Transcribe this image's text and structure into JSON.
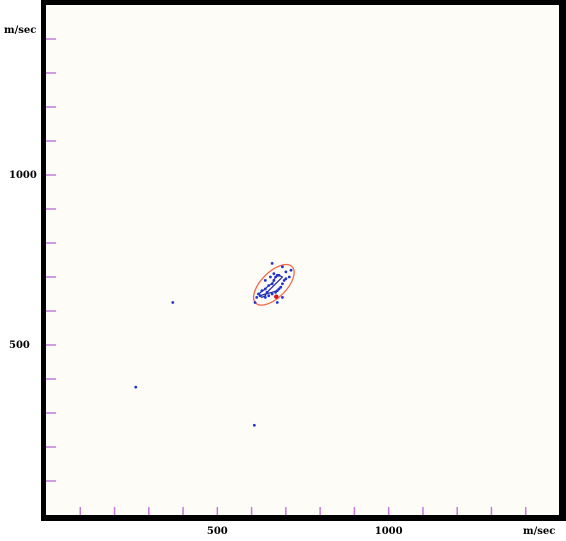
{
  "chart_data": {
    "type": "scatter",
    "xlabel": "m/sec",
    "ylabel": "m/sec",
    "xlim": [
      0,
      1500
    ],
    "ylim": [
      0,
      1500
    ],
    "x_ticks_labeled": [
      500,
      1000
    ],
    "y_ticks_labeled": [
      500,
      1000
    ],
    "minor_tick_step": 100,
    "grid": false,
    "colors": {
      "background": "#fdfcf7",
      "frame": "#000000",
      "tick": "#c47ad8",
      "points": "#2233cc",
      "track": "#1a2aa0",
      "ellipse": "#f06a4a",
      "highlight": "#e0101a"
    },
    "ellipse": {
      "cx": 665,
      "cy": 677,
      "rx": 75,
      "ry": 37,
      "angle_deg": 45
    },
    "points": [
      [
        370,
        625
      ],
      [
        262,
        376
      ],
      [
        608,
        264
      ],
      [
        660,
        740
      ],
      [
        690,
        730
      ],
      [
        700,
        715
      ],
      [
        710,
        700
      ],
      [
        715,
        720
      ],
      [
        680,
        705
      ],
      [
        670,
        700
      ],
      [
        665,
        690
      ],
      [
        660,
        680
      ],
      [
        650,
        675
      ],
      [
        640,
        665
      ],
      [
        630,
        660
      ],
      [
        620,
        650
      ],
      [
        615,
        640
      ],
      [
        640,
        640
      ],
      [
        650,
        645
      ],
      [
        660,
        650
      ],
      [
        670,
        655
      ],
      [
        675,
        660
      ],
      [
        680,
        665
      ],
      [
        685,
        670
      ],
      [
        690,
        680
      ],
      [
        695,
        690
      ],
      [
        700,
        695
      ],
      [
        640,
        690
      ],
      [
        655,
        700
      ],
      [
        665,
        710
      ],
      [
        675,
        705
      ],
      [
        645,
        655
      ],
      [
        625,
        645
      ],
      [
        610,
        625
      ],
      [
        675,
        625
      ],
      [
        690,
        640
      ]
    ],
    "track": [
      [
        620,
        650
      ],
      [
        640,
        665
      ],
      [
        650,
        675
      ],
      [
        660,
        680
      ],
      [
        665,
        690
      ],
      [
        670,
        700
      ],
      [
        680,
        705
      ],
      [
        690,
        700
      ],
      [
        680,
        690
      ],
      [
        670,
        680
      ],
      [
        660,
        670
      ],
      [
        650,
        660
      ],
      [
        645,
        655
      ],
      [
        640,
        645
      ],
      [
        630,
        640
      ],
      [
        625,
        645
      ],
      [
        640,
        650
      ],
      [
        660,
        655
      ],
      [
        675,
        660
      ],
      [
        685,
        670
      ]
    ],
    "highlight": [
      672,
      642
    ]
  }
}
